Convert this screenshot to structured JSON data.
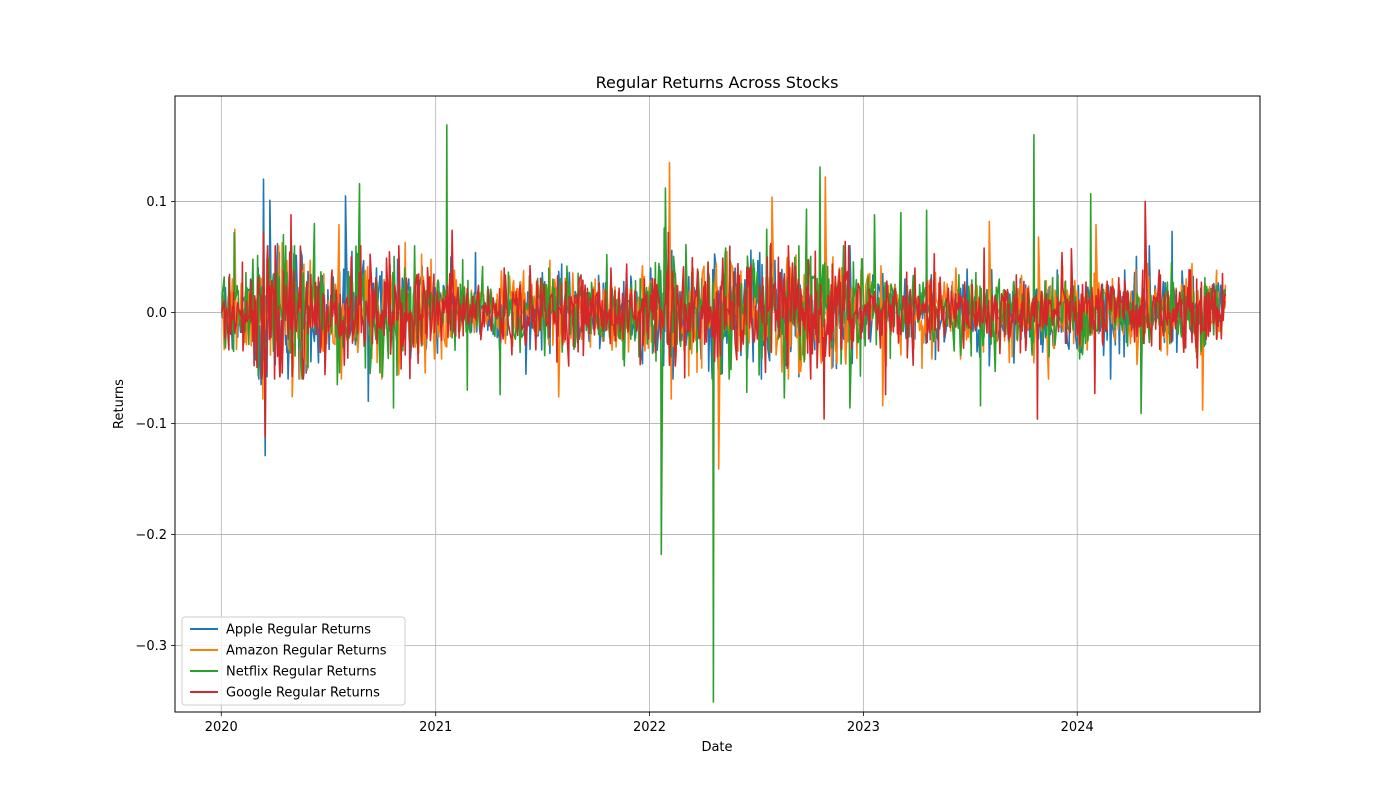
{
  "chart_data": {
    "type": "line",
    "title": "Regular Returns Across Stocks",
    "xlabel": "Date",
    "ylabel": "Returns",
    "xlim": [
      "2019-10-14",
      "2024-11-08"
    ],
    "ylim": [
      -0.36,
      0.195
    ],
    "x_ticks": [
      {
        "date": "2020-01-01",
        "label": "2020"
      },
      {
        "date": "2021-01-01",
        "label": "2021"
      },
      {
        "date": "2022-01-01",
        "label": "2022"
      },
      {
        "date": "2023-01-01",
        "label": "2023"
      },
      {
        "date": "2024-01-01",
        "label": "2024"
      }
    ],
    "y_ticks": [
      {
        "value": 0.1,
        "label": "0.1"
      },
      {
        "value": 0.0,
        "label": "0.0"
      },
      {
        "value": -0.1,
        "label": "−0.1"
      },
      {
        "value": -0.2,
        "label": "−0.2"
      },
      {
        "value": -0.3,
        "label": "−0.3"
      }
    ],
    "grid": true,
    "legend_position": "lower-left",
    "series": [
      {
        "name": "Apple Regular Returns",
        "color": "#1f77b4",
        "points": [
          [
            "2020-01-02",
            0.0
          ],
          [
            "2020-01-15",
            0.022
          ],
          [
            "2020-02-03",
            -0.018
          ],
          [
            "2020-02-20",
            0.03
          ],
          [
            "2020-03-09",
            -0.065
          ],
          [
            "2020-03-13",
            0.12
          ],
          [
            "2020-03-16",
            -0.129
          ],
          [
            "2020-03-24",
            0.101
          ],
          [
            "2020-04-06",
            0.062
          ],
          [
            "2020-04-29",
            -0.03
          ],
          [
            "2020-06-01",
            0.022
          ],
          [
            "2020-06-26",
            -0.048
          ],
          [
            "2020-07-31",
            0.105
          ],
          [
            "2020-08-20",
            0.038
          ],
          [
            "2020-09-08",
            -0.08
          ],
          [
            "2020-09-22",
            0.04
          ],
          [
            "2020-10-20",
            -0.024
          ],
          [
            "2020-11-16",
            0.03
          ],
          [
            "2021-01-27",
            0.05
          ],
          [
            "2021-03-10",
            0.054
          ],
          [
            "2021-05-12",
            -0.03
          ],
          [
            "2021-07-28",
            0.023
          ],
          [
            "2021-09-20",
            -0.026
          ],
          [
            "2021-11-23",
            0.036
          ],
          [
            "2022-01-28",
            0.07
          ],
          [
            "2022-03-16",
            0.04
          ],
          [
            "2022-05-05",
            -0.055
          ],
          [
            "2022-05-27",
            0.04
          ],
          [
            "2022-07-29",
            0.032
          ],
          [
            "2022-09-13",
            -0.058
          ],
          [
            "2022-10-28",
            0.076
          ],
          [
            "2022-12-13",
            -0.046
          ],
          [
            "2023-02-03",
            0.035
          ],
          [
            "2023-04-18",
            -0.028
          ],
          [
            "2023-06-20",
            0.025
          ],
          [
            "2023-08-04",
            -0.048
          ],
          [
            "2023-10-24",
            0.021
          ],
          [
            "2024-01-08",
            -0.036
          ],
          [
            "2024-03-21",
            -0.04
          ],
          [
            "2024-05-03",
            0.06
          ],
          [
            "2024-06-11",
            0.073
          ],
          [
            "2024-07-24",
            -0.025
          ],
          [
            "2024-09-10",
            0.01
          ]
        ]
      },
      {
        "name": "Amazon Regular Returns",
        "color": "#ff7f0e",
        "points": [
          [
            "2020-01-02",
            0.0
          ],
          [
            "2020-01-24",
            0.075
          ],
          [
            "2020-02-21",
            -0.03
          ],
          [
            "2020-03-12",
            -0.078
          ],
          [
            "2020-04-14",
            0.063
          ],
          [
            "2020-05-01",
            -0.076
          ],
          [
            "2020-06-08",
            0.03
          ],
          [
            "2020-07-20",
            0.079
          ],
          [
            "2020-08-26",
            0.055
          ],
          [
            "2020-09-23",
            -0.045
          ],
          [
            "2020-10-30",
            -0.056
          ],
          [
            "2020-11-10",
            0.063
          ],
          [
            "2021-02-02",
            0.038
          ],
          [
            "2021-04-30",
            -0.028
          ],
          [
            "2021-07-15",
            0.047
          ],
          [
            "2021-07-30",
            -0.076
          ],
          [
            "2021-09-30",
            0.03
          ],
          [
            "2021-10-29",
            -0.034
          ],
          [
            "2021-12-20",
            0.042
          ],
          [
            "2022-02-04",
            0.135
          ],
          [
            "2022-02-07",
            -0.078
          ],
          [
            "2022-03-09",
            -0.057
          ],
          [
            "2022-04-29",
            -0.141
          ],
          [
            "2022-05-20",
            0.044
          ],
          [
            "2022-07-29",
            0.104
          ],
          [
            "2022-09-13",
            -0.055
          ],
          [
            "2022-10-28",
            0.122
          ],
          [
            "2022-11-10",
            0.05
          ],
          [
            "2023-02-03",
            -0.084
          ],
          [
            "2023-04-28",
            -0.042
          ],
          [
            "2023-06-08",
            0.04
          ],
          [
            "2023-08-04",
            0.082
          ],
          [
            "2023-09-12",
            -0.04
          ],
          [
            "2023-10-27",
            0.068
          ],
          [
            "2023-12-15",
            0.02
          ],
          [
            "2024-02-02",
            0.079
          ],
          [
            "2024-04-30",
            0.044
          ],
          [
            "2024-08-02",
            -0.088
          ],
          [
            "2024-08-26",
            0.038
          ],
          [
            "2024-09-10",
            0.025
          ]
        ]
      },
      {
        "name": "Netflix Regular Returns",
        "color": "#2ca02c",
        "points": [
          [
            "2020-01-02",
            0.0
          ],
          [
            "2020-01-22",
            -0.035
          ],
          [
            "2020-01-23",
            0.072
          ],
          [
            "2020-02-24",
            0.048
          ],
          [
            "2020-03-16",
            -0.1
          ],
          [
            "2020-04-16",
            0.07
          ],
          [
            "2020-05-15",
            -0.039
          ],
          [
            "2020-06-08",
            0.08
          ],
          [
            "2020-07-17",
            -0.065
          ],
          [
            "2020-08-24",
            0.116
          ],
          [
            "2020-09-03",
            -0.05
          ],
          [
            "2020-10-21",
            -0.086
          ],
          [
            "2020-11-09",
            0.04
          ],
          [
            "2021-01-20",
            0.169
          ],
          [
            "2021-02-24",
            -0.07
          ],
          [
            "2021-04-21",
            -0.074
          ],
          [
            "2021-07-20",
            0.03
          ],
          [
            "2021-10-20",
            0.052
          ],
          [
            "2021-12-14",
            -0.04
          ],
          [
            "2022-01-21",
            -0.218
          ],
          [
            "2022-01-26",
            0.076
          ],
          [
            "2022-01-28",
            0.112
          ],
          [
            "2022-03-04",
            0.061
          ],
          [
            "2022-04-20",
            -0.351
          ],
          [
            "2022-05-11",
            0.058
          ],
          [
            "2022-06-16",
            -0.072
          ],
          [
            "2022-07-20",
            0.075
          ],
          [
            "2022-08-19",
            -0.077
          ],
          [
            "2022-09-26",
            0.093
          ],
          [
            "2022-10-19",
            0.131
          ],
          [
            "2022-12-09",
            -0.086
          ],
          [
            "2023-01-20",
            0.088
          ],
          [
            "2023-03-06",
            0.09
          ],
          [
            "2023-04-19",
            0.092
          ],
          [
            "2023-07-20",
            -0.084
          ],
          [
            "2023-10-19",
            0.16
          ],
          [
            "2023-11-14",
            -0.04
          ],
          [
            "2024-01-24",
            0.107
          ],
          [
            "2024-04-19",
            -0.091
          ],
          [
            "2024-06-10",
            0.045
          ],
          [
            "2024-09-10",
            0.015
          ]
        ]
      },
      {
        "name": "Google Regular Returns",
        "color": "#d62728",
        "points": [
          [
            "2020-01-02",
            0.0
          ],
          [
            "2020-02-26",
            -0.048
          ],
          [
            "2020-03-13",
            0.072
          ],
          [
            "2020-03-16",
            -0.112
          ],
          [
            "2020-04-29",
            0.088
          ],
          [
            "2020-06-26",
            -0.056
          ],
          [
            "2020-08-10",
            0.05
          ],
          [
            "2020-10-30",
            0.06
          ],
          [
            "2021-01-29",
            0.074
          ],
          [
            "2021-04-28",
            0.04
          ],
          [
            "2021-07-28",
            0.033
          ],
          [
            "2021-10-27",
            0.04
          ],
          [
            "2021-12-16",
            -0.047
          ],
          [
            "2022-02-02",
            0.072
          ],
          [
            "2022-04-27",
            -0.04
          ],
          [
            "2022-07-27",
            0.062
          ],
          [
            "2022-10-26",
            -0.096
          ],
          [
            "2022-12-01",
            0.064
          ],
          [
            "2023-02-08",
            -0.074
          ],
          [
            "2023-04-26",
            0.03
          ],
          [
            "2023-07-26",
            0.058
          ],
          [
            "2023-10-25",
            -0.096
          ],
          [
            "2023-12-06",
            0.054
          ],
          [
            "2024-01-31",
            -0.073
          ],
          [
            "2024-04-26",
            0.1
          ],
          [
            "2024-07-24",
            -0.05
          ],
          [
            "2024-09-10",
            0.015
          ]
        ]
      }
    ]
  }
}
